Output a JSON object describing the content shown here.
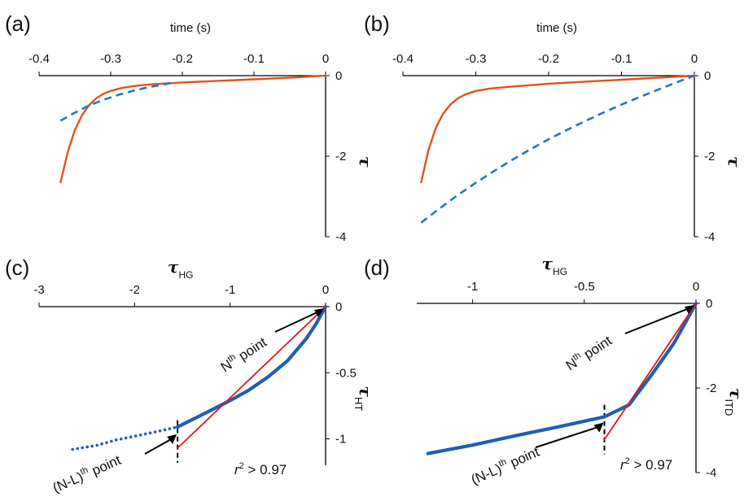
{
  "chart_data": [
    {
      "id": "a",
      "type": "line",
      "panel_label": "(a)",
      "xlabel": "time (s)",
      "ylabel": "τ",
      "xlim": [
        -0.4,
        0
      ],
      "ylim": [
        -4,
        0
      ],
      "x_ticks": [
        "-0.4",
        "-0.3",
        "-0.2",
        "-0.1",
        "0"
      ],
      "y_ticks": [
        "0",
        "-2",
        "-4"
      ],
      "series": [
        {
          "style": "solid",
          "color": "#e0531d",
          "x": [
            -0.37,
            -0.36,
            -0.35,
            -0.34,
            -0.33,
            -0.32,
            -0.31,
            -0.3,
            -0.29,
            -0.28,
            -0.26,
            -0.24,
            -0.22,
            -0.2,
            -0.15,
            -0.1,
            -0.05,
            0
          ],
          "y": [
            -2.65,
            -1.9,
            -1.35,
            -0.98,
            -0.73,
            -0.56,
            -0.45,
            -0.38,
            -0.33,
            -0.29,
            -0.24,
            -0.21,
            -0.19,
            -0.17,
            -0.13,
            -0.09,
            -0.05,
            0
          ]
        },
        {
          "style": "dashed",
          "color": "#1f77c4",
          "x": [
            -0.37,
            -0.35,
            -0.33,
            -0.31,
            -0.29,
            -0.27,
            -0.25,
            -0.23,
            -0.21
          ],
          "y": [
            -1.12,
            -0.92,
            -0.74,
            -0.6,
            -0.48,
            -0.38,
            -0.3,
            -0.23,
            -0.17
          ]
        }
      ]
    },
    {
      "id": "b",
      "type": "line",
      "panel_label": "(b)",
      "xlabel": "time (s)",
      "ylabel": "τ",
      "xlim": [
        -0.4,
        0
      ],
      "ylim": [
        -4,
        0
      ],
      "x_ticks": [
        "-0.4",
        "-0.3",
        "-0.2",
        "-0.1",
        "0"
      ],
      "y_ticks": [
        "0",
        "-2",
        "-4"
      ],
      "series": [
        {
          "style": "solid",
          "color": "#e0531d",
          "x": [
            -0.375,
            -0.365,
            -0.355,
            -0.345,
            -0.335,
            -0.325,
            -0.315,
            -0.3,
            -0.28,
            -0.25,
            -0.22,
            -0.2,
            -0.15,
            -0.1,
            -0.05,
            0
          ],
          "y": [
            -2.65,
            -1.85,
            -1.3,
            -0.95,
            -0.72,
            -0.57,
            -0.47,
            -0.38,
            -0.32,
            -0.27,
            -0.23,
            -0.2,
            -0.15,
            -0.1,
            -0.05,
            0
          ]
        },
        {
          "style": "dashed",
          "color": "#1f77c4",
          "x": [
            -0.375,
            -0.35,
            -0.325,
            -0.3,
            -0.275,
            -0.25,
            -0.225,
            -0.2,
            -0.175,
            -0.15,
            -0.125,
            -0.1,
            -0.075,
            -0.05,
            -0.025,
            0
          ],
          "y": [
            -3.65,
            -3.3,
            -2.97,
            -2.66,
            -2.37,
            -2.09,
            -1.83,
            -1.58,
            -1.35,
            -1.13,
            -0.92,
            -0.72,
            -0.53,
            -0.35,
            -0.17,
            0
          ]
        }
      ]
    },
    {
      "id": "c",
      "type": "line",
      "panel_label": "(c)",
      "xlabel": "τ",
      "xlabel_sub": "HG",
      "ylabel": "τ",
      "ylabel_sub": "HT",
      "xlim": [
        -3,
        0
      ],
      "ylim": [
        -1.2,
        0
      ],
      "x_ticks": [
        "-3",
        "-2",
        "-1",
        "0"
      ],
      "y_ticks": [
        "0",
        "-0.5",
        "-1"
      ],
      "annotations": {
        "nth": "N",
        "nth_sup": "th",
        "nth_suffix": " point",
        "nl": "(N-L)",
        "nl_sup": "th",
        "nl_suffix": " point",
        "r2": "r",
        "r2_sup": "2",
        "r2_suffix": " > 0.97"
      },
      "split_x": -1.55,
      "series": [
        {
          "style": "dotted",
          "color": "#1f5fb0",
          "x": [
            -2.65,
            -2.4,
            -2.2,
            -2.0,
            -1.8,
            -1.55
          ],
          "y": [
            -1.08,
            -1.05,
            -1.01,
            -0.98,
            -0.95,
            -0.91
          ]
        },
        {
          "style": "thick",
          "color": "#1f5fb0",
          "x": [
            -1.55,
            -1.3,
            -1.0,
            -0.8,
            -0.6,
            -0.4,
            -0.2,
            -0.1,
            0
          ],
          "y": [
            -0.91,
            -0.82,
            -0.71,
            -0.63,
            -0.53,
            -0.41,
            -0.24,
            -0.13,
            0
          ]
        },
        {
          "style": "fit",
          "color": "#e0161b",
          "x": [
            -1.55,
            0
          ],
          "y": [
            -1.07,
            0
          ]
        }
      ]
    },
    {
      "id": "d",
      "type": "line",
      "panel_label": "(d)",
      "xlabel": "τ",
      "xlabel_sub": "HG",
      "ylabel": "τ",
      "ylabel_sub": "ITD",
      "xlim": [
        -1.25,
        0
      ],
      "ylim": [
        -4,
        0
      ],
      "x_ticks": [
        "-1",
        "-0.5",
        "0"
      ],
      "y_ticks": [
        "0",
        "-2",
        "-4"
      ],
      "annotations": {
        "nth": "N",
        "nth_sup": "th",
        "nth_suffix": " point",
        "nl": "(N-L)",
        "nl_sup": "th",
        "nl_suffix": " point",
        "r2": "r",
        "r2_sup": "2",
        "r2_suffix": " > 0.97"
      },
      "split_x": -0.41,
      "series": [
        {
          "style": "thick",
          "color": "#1f5fb0",
          "x": [
            -1.2,
            -1.0,
            -0.8,
            -0.6,
            -0.41,
            -0.3,
            -0.2,
            -0.1,
            -0.05,
            0
          ],
          "y": [
            -3.55,
            -3.35,
            -3.12,
            -2.9,
            -2.68,
            -2.4,
            -1.7,
            -0.95,
            -0.48,
            0
          ]
        },
        {
          "style": "fit",
          "color": "#e0161b",
          "x": [
            -0.41,
            0
          ],
          "y": [
            -3.22,
            0
          ]
        }
      ]
    }
  ]
}
